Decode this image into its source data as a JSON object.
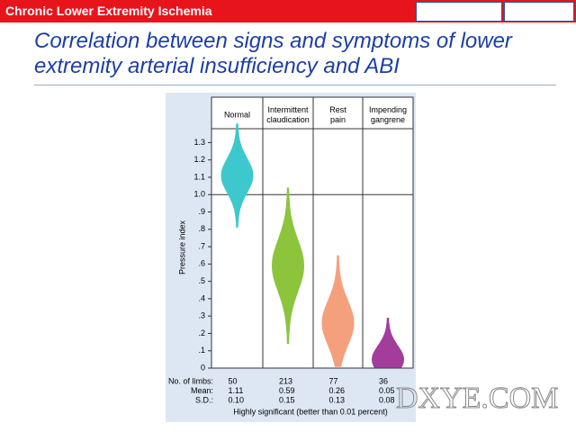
{
  "header": {
    "title": "Chronic Lower Extremity Ischemia"
  },
  "slide": {
    "title": "Correlation between signs and symptoms of lower extremity arterial insufficiency and ABI",
    "watermark": "DXYE.COM"
  },
  "chart_data": {
    "type": "strip",
    "categories": [
      "Normal",
      "Intermittent claudication",
      "Rest pain",
      "Impending gangrene"
    ],
    "colors": [
      "#3cc8cc",
      "#8cc43c",
      "#f4a07c",
      "#a43c9c"
    ],
    "y_label": "Pressure index",
    "ylim": [
      0,
      1.38
    ],
    "yticks": [
      0,
      {
        "value": 0.1,
        "label": ".1"
      },
      {
        "value": 0.2,
        "label": ".2"
      },
      {
        "value": 0.3,
        "label": ".3"
      },
      {
        "value": 0.4,
        "label": ".4"
      },
      {
        "value": 0.5,
        "label": ".5"
      },
      {
        "value": 0.6,
        "label": ".6"
      },
      {
        "value": 0.7,
        "label": ".7"
      },
      {
        "value": 0.8,
        "label": ".8"
      },
      {
        "value": 0.9,
        "label": ".9"
      },
      {
        "value": 1.0,
        "label": "1.0"
      },
      1.1,
      1.2,
      1.3
    ],
    "threshold": 1.0,
    "stats": [
      {
        "name": "No. of limbs:",
        "values": [
          50,
          213,
          77,
          36
        ]
      },
      {
        "name": "Mean:",
        "values": [
          1.11,
          0.59,
          0.26,
          0.05
        ]
      },
      {
        "name": "S.D.:",
        "values": [
          0.1,
          0.15,
          0.13,
          0.08
        ],
        "value_labels": [
          "0.10",
          "0.15",
          "0.13",
          "0.08"
        ]
      }
    ],
    "footnote": "Highly significant (better than 0.01 percent)"
  }
}
